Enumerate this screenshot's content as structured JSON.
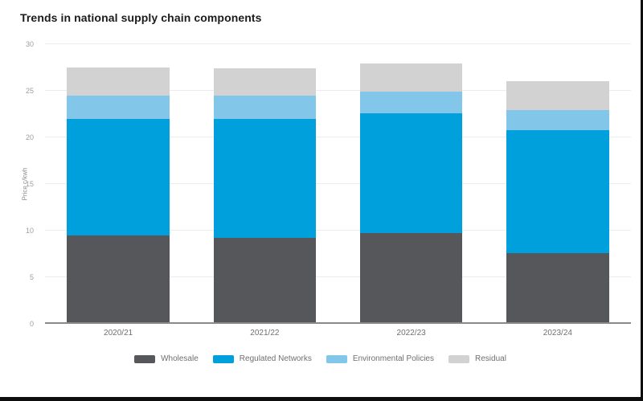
{
  "title": "Trends in national supply chain components",
  "chart_data": {
    "type": "bar",
    "stacked": true,
    "title": "Trends in national supply chain components",
    "xlabel": "",
    "ylabel": "Price c/kwh",
    "ylim": [
      0,
      30
    ],
    "yticks": [
      0,
      5,
      10,
      15,
      20,
      25,
      30
    ],
    "grid": true,
    "legend_position": "bottom",
    "categories": [
      "2020/21",
      "2021/22",
      "2022/23",
      "2023/24"
    ],
    "series": [
      {
        "name": "Wholesale",
        "color": "#56575b",
        "values": [
          9.5,
          9.2,
          9.7,
          7.6
        ]
      },
      {
        "name": "Regulated Networks",
        "color": "#00a0dc",
        "values": [
          12.5,
          12.8,
          12.9,
          13.2
        ]
      },
      {
        "name": "Environmental Policies",
        "color": "#82c7e9",
        "values": [
          2.5,
          2.5,
          2.3,
          2.1
        ]
      },
      {
        "name": "Residual",
        "color": "#d2d2d3",
        "values": [
          3.0,
          2.9,
          3.0,
          3.1
        ]
      }
    ],
    "totals": [
      27.5,
      27.4,
      27.9,
      26.0
    ]
  }
}
